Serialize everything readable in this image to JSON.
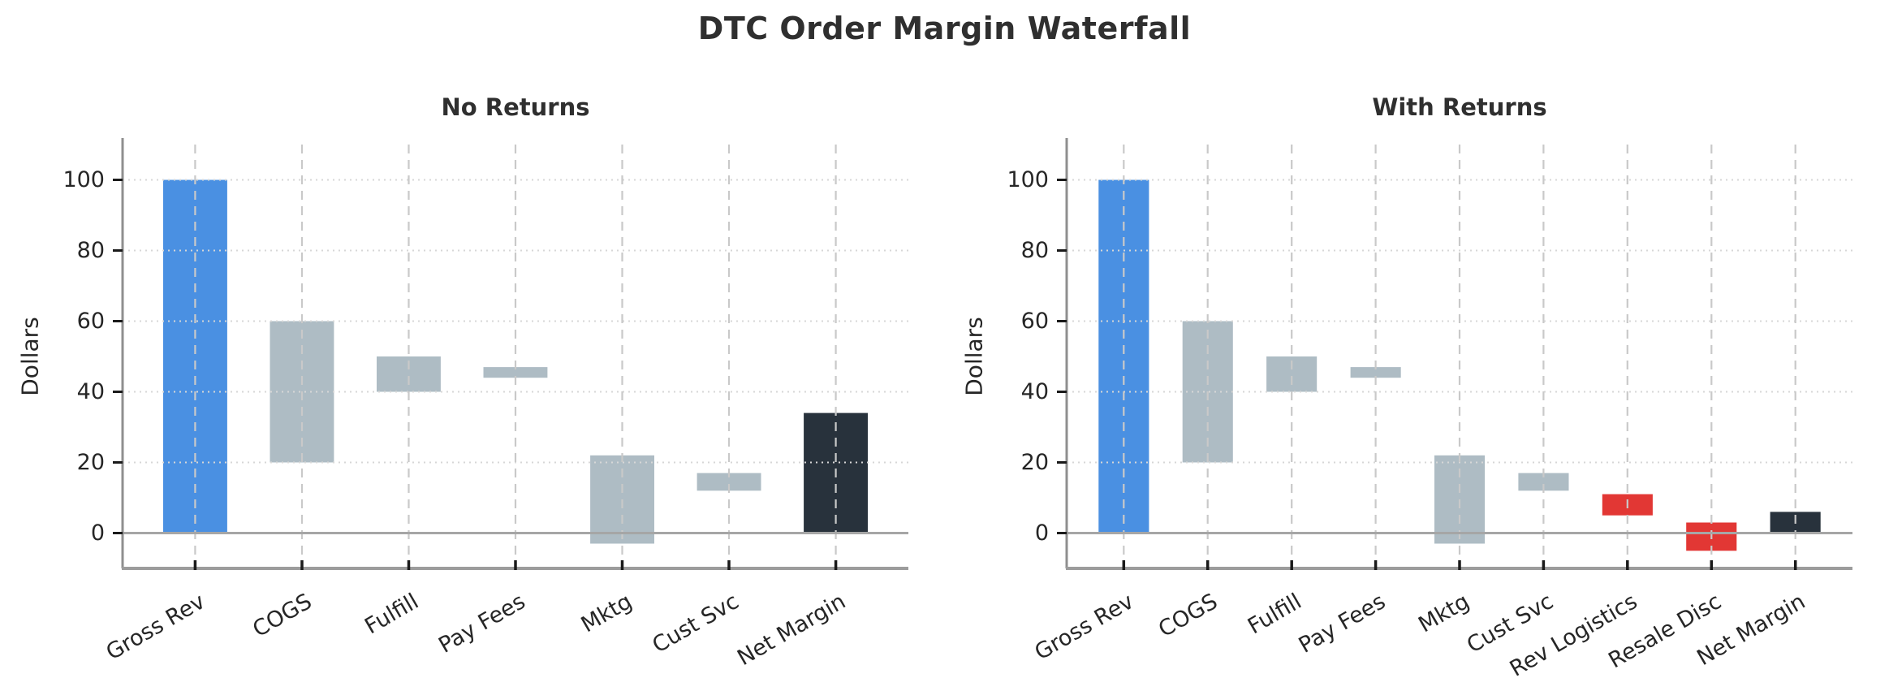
{
  "page_title": "DTC Order Margin Waterfall",
  "colors": {
    "revenue_bar": "#4a90e2",
    "cost_bar": "#aebcc4",
    "returns_bar": "#e23734",
    "net_bar": "#28323c",
    "title_text": "#2f2f2f",
    "tick_text": "#262626",
    "left_spine": "#8f8f8f",
    "bottom_spine": "#9c9c9c",
    "zero_line": "#a6a6a6",
    "v_grid": "#c9c9c9",
    "h_grid": "#d7d7d7",
    "tick_mark": "#1a1a1a"
  },
  "chart_data": [
    {
      "type": "bar",
      "variant": "waterfall",
      "title": "No Returns",
      "xlabel": "",
      "ylabel": "Dollars",
      "yticks": [
        0,
        20,
        40,
        60,
        80,
        100
      ],
      "ylim": [
        -10,
        110
      ],
      "grid": true,
      "zero_line_y": 0,
      "bar_width_frac": 0.6,
      "categories": [
        "Gross Rev",
        "COGS",
        "Fulfill",
        "Pay Fees",
        "Mktg",
        "Cust Svc",
        "Net Margin"
      ],
      "bars": [
        {
          "label": "Gross Rev",
          "span": [
            0,
            100
          ],
          "role": "revenue"
        },
        {
          "label": "COGS",
          "span": [
            20,
            60
          ],
          "role": "cost"
        },
        {
          "label": "Fulfill",
          "span": [
            40,
            50
          ],
          "role": "cost"
        },
        {
          "label": "Pay Fees",
          "span": [
            44,
            47
          ],
          "role": "cost"
        },
        {
          "label": "Mktg",
          "span": [
            -3,
            22
          ],
          "role": "cost"
        },
        {
          "label": "Cust Svc",
          "span": [
            12,
            17
          ],
          "role": "cost"
        },
        {
          "label": "Net Margin",
          "span": [
            0,
            34
          ],
          "role": "net"
        }
      ]
    },
    {
      "type": "bar",
      "variant": "waterfall",
      "title": "With Returns",
      "xlabel": "",
      "ylabel": "Dollars",
      "yticks": [
        0,
        20,
        40,
        60,
        80,
        100
      ],
      "ylim": [
        -10,
        110
      ],
      "grid": true,
      "zero_line_y": 0,
      "bar_width_frac": 0.6,
      "categories": [
        "Gross Rev",
        "COGS",
        "Fulfill",
        "Pay Fees",
        "Mktg",
        "Cust Svc",
        "Rev Logistics",
        "Resale Disc",
        "Net Margin"
      ],
      "bars": [
        {
          "label": "Gross Rev",
          "span": [
            0,
            100
          ],
          "role": "revenue"
        },
        {
          "label": "COGS",
          "span": [
            20,
            60
          ],
          "role": "cost"
        },
        {
          "label": "Fulfill",
          "span": [
            40,
            50
          ],
          "role": "cost"
        },
        {
          "label": "Pay Fees",
          "span": [
            44,
            47
          ],
          "role": "cost"
        },
        {
          "label": "Mktg",
          "span": [
            -3,
            22
          ],
          "role": "cost"
        },
        {
          "label": "Cust Svc",
          "span": [
            12,
            17
          ],
          "role": "cost"
        },
        {
          "label": "Rev Logistics",
          "span": [
            5,
            11
          ],
          "role": "returns"
        },
        {
          "label": "Resale Disc",
          "span": [
            -5,
            3
          ],
          "role": "returns"
        },
        {
          "label": "Net Margin",
          "span": [
            0,
            6
          ],
          "role": "net"
        }
      ]
    }
  ]
}
